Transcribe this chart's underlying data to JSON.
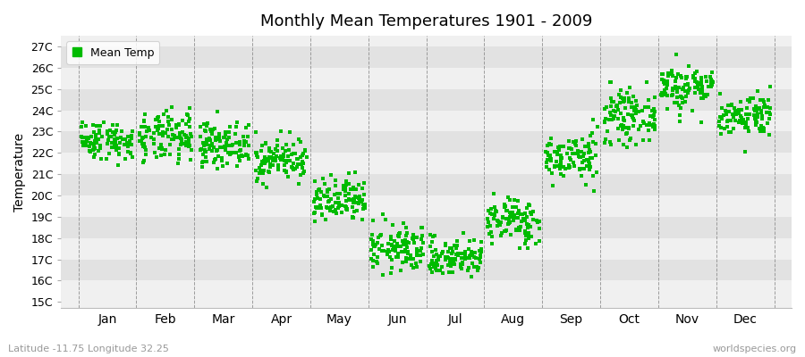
{
  "title": "Monthly Mean Temperatures 1901 - 2009",
  "ylabel": "Temperature",
  "xlabel_months": [
    "Jan",
    "Feb",
    "Mar",
    "Apr",
    "May",
    "Jun",
    "Jul",
    "Aug",
    "Sep",
    "Oct",
    "Nov",
    "Dec"
  ],
  "ytick_labels": [
    "15C",
    "16C",
    "17C",
    "18C",
    "19C",
    "20C",
    "21C",
    "22C",
    "23C",
    "24C",
    "25C",
    "26C",
    "27C"
  ],
  "ytick_values": [
    15,
    16,
    17,
    18,
    19,
    20,
    21,
    22,
    23,
    24,
    25,
    26,
    27
  ],
  "ylim": [
    14.7,
    27.5
  ],
  "dot_color": "#00bb00",
  "band_light": "#f0f0f0",
  "band_dark": "#e2e2e2",
  "legend_label": "Mean Temp",
  "subtitle_left": "Latitude -11.75 Longitude 32.25",
  "subtitle_right": "worldspecies.org",
  "n_years": 109,
  "monthly_means": [
    22.6,
    22.7,
    22.4,
    21.7,
    19.7,
    17.5,
    17.1,
    18.8,
    21.8,
    23.7,
    25.1,
    23.8
  ],
  "monthly_stds": [
    0.45,
    0.6,
    0.5,
    0.5,
    0.55,
    0.55,
    0.45,
    0.55,
    0.55,
    0.6,
    0.55,
    0.5
  ],
  "seed": 42
}
